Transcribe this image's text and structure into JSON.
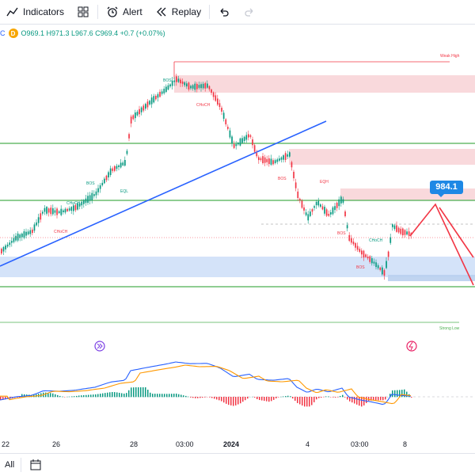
{
  "toolbar": {
    "indicators_label": "Indicators",
    "alert_label": "Alert",
    "replay_label": "Replay"
  },
  "legend": {
    "prefix": "C",
    "badge": "D",
    "ohlc": "O969.1 H971.3 L967.6 C969.4 +0.7 (+0.07%)"
  },
  "annotations": {
    "weak_high": "Weak High",
    "strong_low": "Strong Low",
    "price_target": "984.1",
    "bos": "BOS",
    "choch": "CHoCH",
    "eql": "EQL",
    "eqh": "EQH"
  },
  "time_axis": {
    "labels": [
      "22",
      "26",
      "28",
      "03:00",
      "2024",
      "4",
      "03:00",
      "8"
    ]
  },
  "bottom": {
    "range_label": "All"
  },
  "colors": {
    "up": "#089981",
    "down": "#f23645",
    "trendline": "#2962ff",
    "level": "#4caf50",
    "supply_zone": "#f8d0d3",
    "demand_zone": "#cfe0f8",
    "target": "#1e88e5"
  }
}
